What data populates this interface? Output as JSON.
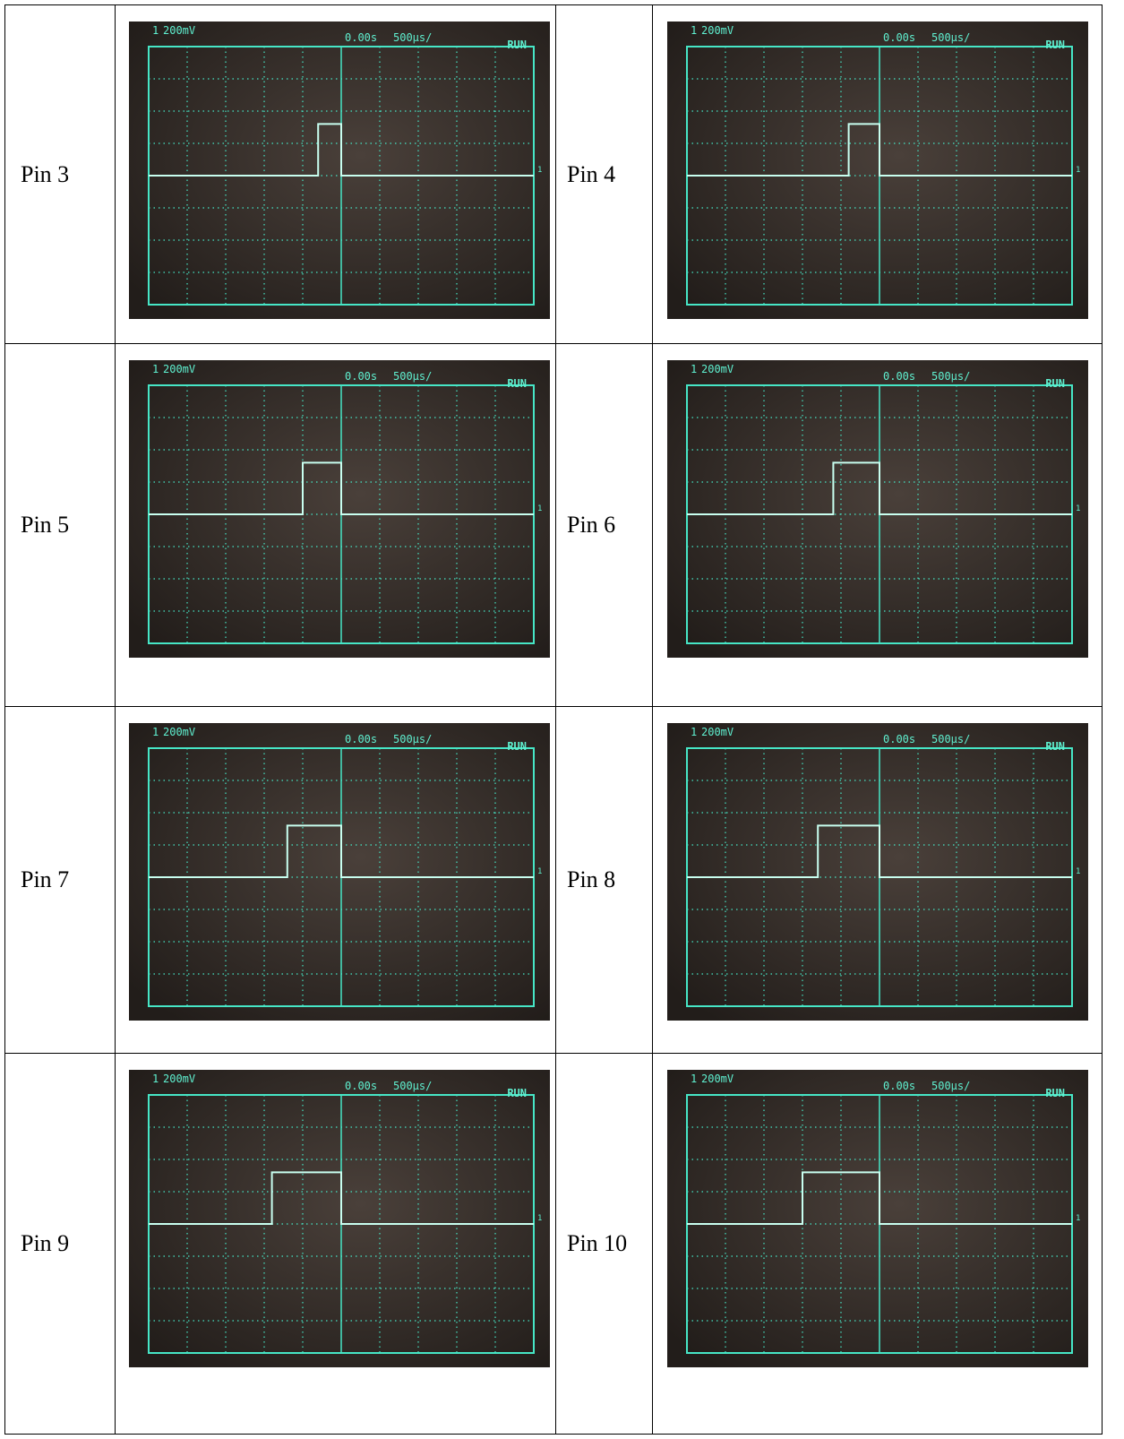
{
  "table": {
    "rows": [
      [
        {
          "label": "Pin 3",
          "scope": {
            "channel": "1",
            "scale": "200mV",
            "delay": "0.00s",
            "timebase": "500µs/",
            "status": "RUN",
            "marker": "1"
          }
        },
        {
          "label": "Pin 4",
          "scope": {
            "channel": "1",
            "scale": "200mV",
            "delay": "0.00s",
            "timebase": "500µs/",
            "status": "RUN",
            "marker": "1"
          }
        }
      ],
      [
        {
          "label": "Pin 5",
          "scope": {
            "channel": "1",
            "scale": "200mV",
            "delay": "0.00s",
            "timebase": "500µs/",
            "status": "RUN",
            "marker": "1"
          }
        },
        {
          "label": "Pin 6",
          "scope": {
            "channel": "1",
            "scale": "200mV",
            "delay": "0.00s",
            "timebase": "500µs/",
            "status": "RUN",
            "marker": "1"
          }
        }
      ],
      [
        {
          "label": "Pin 7",
          "scope": {
            "channel": "1",
            "scale": "200mV",
            "delay": "0.00s",
            "timebase": "500µs/",
            "status": "RUN",
            "marker": "1"
          }
        },
        {
          "label": "Pin 8",
          "scope": {
            "channel": "1",
            "scale": "200mV",
            "delay": "0.00s",
            "timebase": "500µs/",
            "status": "RUN",
            "marker": "1"
          }
        }
      ],
      [
        {
          "label": "Pin 9",
          "scope": {
            "channel": "1",
            "scale": "200mV",
            "delay": "0.00s",
            "timebase": "500µs/",
            "status": "RUN",
            "marker": "1"
          }
        },
        {
          "label": "Pin 10",
          "scope": {
            "channel": "1",
            "scale": "200mV",
            "delay": "0.00s",
            "timebase": "500µs/",
            "status": "RUN",
            "marker": "1"
          }
        }
      ]
    ]
  }
}
